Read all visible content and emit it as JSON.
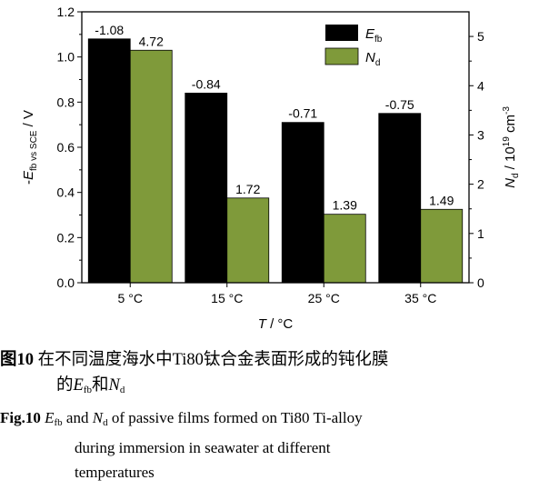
{
  "chart_data": {
    "type": "bar",
    "categories": [
      "5 °C",
      "15 °C",
      "25 °C",
      "35 °C"
    ],
    "series": [
      {
        "name": "E_fb",
        "axis": "left",
        "color": "#000000",
        "values": [
          1.08,
          0.84,
          0.71,
          0.75
        ],
        "labels": [
          "-1.08",
          "-0.84",
          "-0.71",
          "-0.75"
        ]
      },
      {
        "name": "N_d",
        "axis": "right",
        "color": "#7f9a3a",
        "values": [
          4.72,
          1.72,
          1.39,
          1.49
        ],
        "labels": [
          "4.72",
          "1.72",
          "1.39",
          "1.49"
        ]
      }
    ],
    "xlabel": {
      "var": "T",
      "unit": " / °C"
    },
    "ylabel_left": {
      "prefix": "-",
      "var": "E",
      "sub": "fb vs SCE",
      "unit": " / V"
    },
    "ylabel_right": {
      "var": "N",
      "sub": "d",
      "unit": " / 10",
      "sup1": "19",
      "unit2": " cm",
      "sup2": "-3"
    },
    "ylim_left": [
      0,
      1.2
    ],
    "ylim_right": [
      0,
      5.5
    ],
    "yticks_left": [
      "0.0",
      "0.2",
      "0.4",
      "0.6",
      "0.8",
      "1.0",
      "1.2"
    ],
    "yticks_right": [
      "0",
      "1",
      "2",
      "3",
      "4",
      "5"
    ],
    "legend": {
      "position": "top-right",
      "items": [
        {
          "var": "E",
          "sub": "fb"
        },
        {
          "var": "N",
          "sub": "d"
        }
      ]
    },
    "grid": false
  },
  "caption": {
    "zh_label": "图10",
    "zh_text_line1": " 在不同温度海水中Ti80钛合金表面形成的钝化膜",
    "zh_text_line2_pre": "的",
    "zh_text_line2_mid": "和",
    "en_label": "Fig.10",
    "en_text_line1": " and ",
    "en_text_line1_end": " of passive films formed on Ti80 Ti-alloy",
    "en_text_line2": "during immersion in seawater at different",
    "en_text_line3": "temperatures",
    "sym_E": "E",
    "sym_E_sub": "fb",
    "sym_N": "N",
    "sym_N_sub": "d"
  }
}
